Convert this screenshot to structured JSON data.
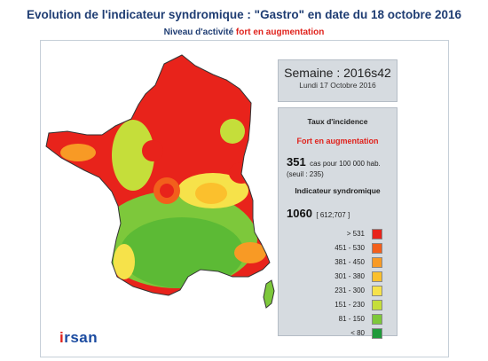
{
  "title": "Evolution de l'indicateur syndromique : \"Gastro\" en date du 18 octobre 2016",
  "subtitle": {
    "prefix": "Niveau d'activité",
    "status": "fort en augmentation"
  },
  "week": {
    "label": "Semaine : 2016s42",
    "date": "Lundi 17 Octobre 2016"
  },
  "incidence": {
    "heading": "Taux d'incidence",
    "trend": "Fort en augmentation",
    "value": "351",
    "unit": "cas pour 100 000 hab.",
    "threshold": "(seuil : 235)"
  },
  "indicator": {
    "heading": "Indicateur syndromique",
    "value": "1060",
    "range": "[ 612;707 ]"
  },
  "legend": [
    {
      "label": "> 531",
      "color": "#e8231b"
    },
    {
      "label": "451 - 530",
      "color": "#f25f1c"
    },
    {
      "label": "381 - 450",
      "color": "#f89a25"
    },
    {
      "label": "301 - 380",
      "color": "#fbc02d"
    },
    {
      "label": "231 - 300",
      "color": "#f6e24a"
    },
    {
      "label": "151 - 230",
      "color": "#c5de3a"
    },
    {
      "label": "81 - 150",
      "color": "#7dc83b"
    },
    {
      "label": "< 80",
      "color": "#1f9a3a"
    }
  ],
  "logo": {
    "prefix": "i",
    "rest": "rsan"
  },
  "colors": {
    "title": "#1f3d73",
    "status": "#e0221c",
    "box": "#d6dbe0"
  }
}
